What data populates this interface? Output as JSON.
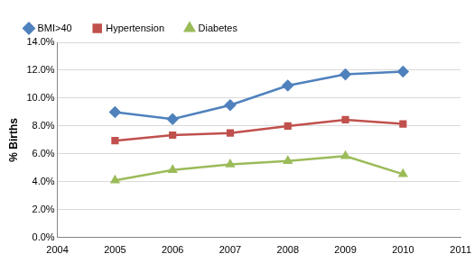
{
  "chart_data": {
    "type": "line",
    "y_label": "% Births",
    "x": [
      2005,
      2006,
      2007,
      2008,
      2009,
      2010
    ],
    "series": [
      {
        "name": "BMI>40",
        "color": "#4f81bd",
        "marker": "diamond",
        "line_style": "solid",
        "values": [
          9.0,
          8.5,
          9.5,
          10.9,
          11.7,
          11.9
        ]
      },
      {
        "name": "Hypertension",
        "color": "#c0504d",
        "marker": "square",
        "line_style": "solid",
        "values": [
          6.95,
          7.35,
          7.5,
          8.0,
          8.45,
          8.15
        ]
      },
      {
        "name": "Diabetes",
        "color": "#9bbb59",
        "marker": "triangle",
        "line_style": "solid",
        "values": [
          4.1,
          4.85,
          5.25,
          5.5,
          5.85,
          4.55
        ]
      }
    ],
    "xlim": [
      2004,
      2011
    ],
    "xticks": [
      2004,
      2005,
      2006,
      2007,
      2008,
      2009,
      2010,
      2011
    ],
    "ylim": [
      0,
      14
    ],
    "yticks": [
      {
        "value": 0,
        "label": "0.0%"
      },
      {
        "value": 2,
        "label": "2.0%"
      },
      {
        "value": 4,
        "label": "4.0%"
      },
      {
        "value": 6,
        "label": "6.0%"
      },
      {
        "value": 8,
        "label": "8.0%"
      },
      {
        "value": 10,
        "label": "10.0%"
      },
      {
        "value": 12,
        "label": "12.0%"
      },
      {
        "value": 14,
        "label": "14.0%"
      }
    ],
    "grid": true,
    "legend": "top"
  }
}
